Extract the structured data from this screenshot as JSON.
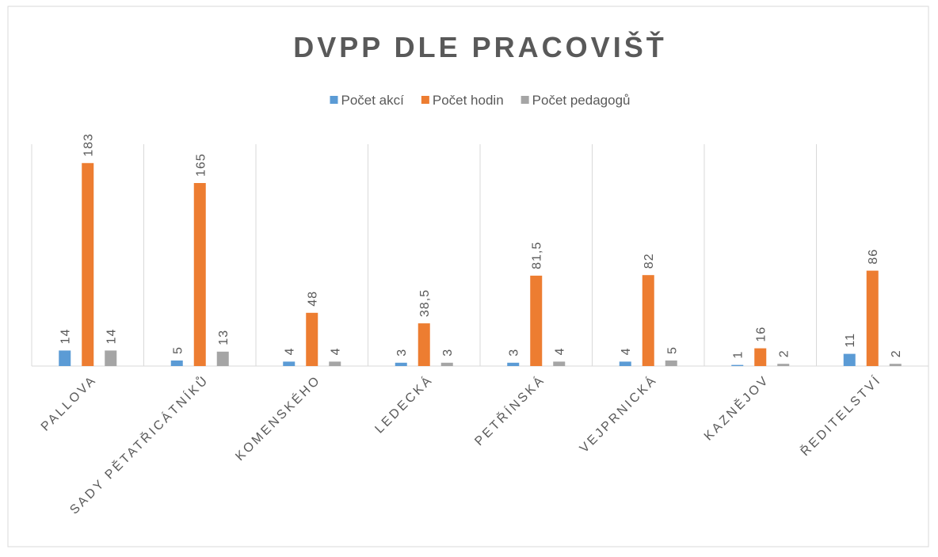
{
  "chart_data": {
    "type": "bar",
    "title": "DVPP DLE PRACOVIŠŤ",
    "categories": [
      "PALLOVA",
      "SADY PĚTATŘICÁTNÍKŮ",
      "KOMENSKÉHO",
      "LEDECKÁ",
      "PETŘÍNSKÁ",
      "VEJPRNICKÁ",
      "KAZNĚJOV",
      "ŘEDITELSTVÍ"
    ],
    "series": [
      {
        "name": "Počet akcí",
        "color": "#5b9bd5",
        "values": [
          14,
          5,
          4,
          3,
          3,
          4,
          1,
          11
        ]
      },
      {
        "name": "Počet hodin",
        "color": "#ed7d31",
        "values": [
          183,
          165,
          48,
          38.5,
          81.5,
          82,
          16,
          86
        ],
        "value_labels": [
          "183",
          "165",
          "48",
          "38,5",
          "81,5",
          "82",
          "16",
          "86"
        ]
      },
      {
        "name": "Počet pedagogů",
        "color": "#a5a5a5",
        "values": [
          14,
          13,
          4,
          3,
          4,
          5,
          2,
          2
        ]
      }
    ],
    "ylim": [
      0,
      200
    ],
    "legend": "top"
  }
}
